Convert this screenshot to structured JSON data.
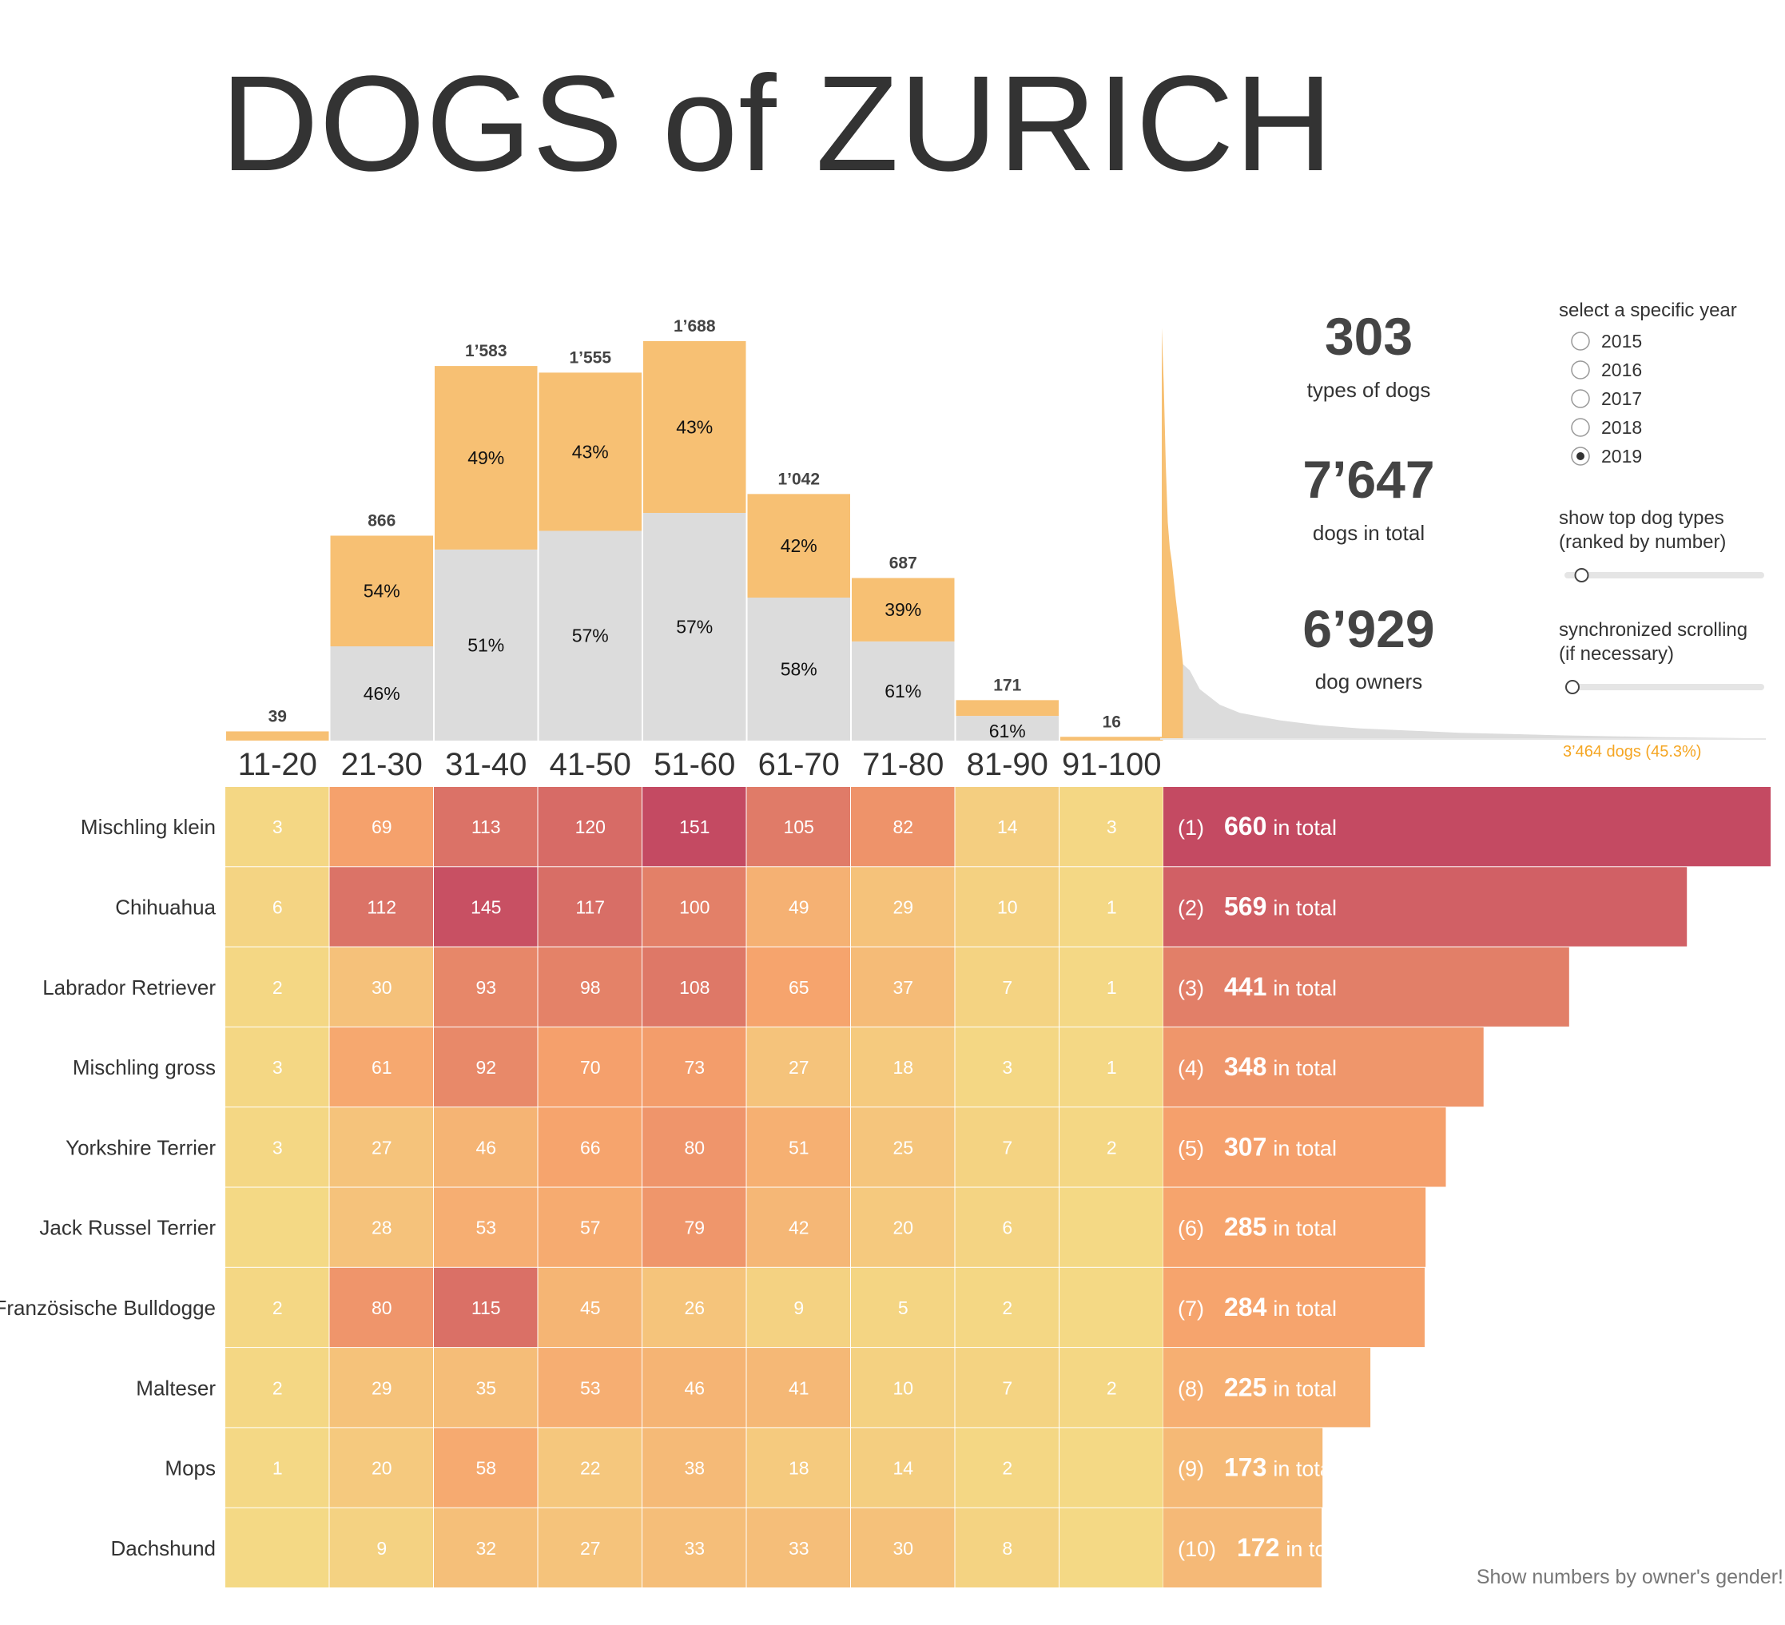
{
  "title": "DOGS of ZURICH",
  "stats": [
    {
      "value": "303",
      "label": "types of dogs"
    },
    {
      "value": "7’647",
      "label": "dogs in total"
    },
    {
      "value": "6’929",
      "label": "dog owners"
    }
  ],
  "controls": {
    "year_heading": "select a specific year",
    "years": [
      "2015",
      "2016",
      "2017",
      "2018",
      "2019"
    ],
    "selected_year": "2019",
    "top_types_heading_1": "show top dog types",
    "top_types_heading_2": "(ranked by number)",
    "top_types_slider_value": 0.05,
    "sync_heading_1": "synchronized scrolling",
    "sync_heading_2": "(if necessary)",
    "sync_slider_value": 0.0
  },
  "distribution_note": "3’464 dogs  (45.3%)",
  "footer": "Show numbers by owner's gender!",
  "colors": {
    "orange": "#f7c073",
    "gray": "#dcdcdc",
    "heat_low": "#f4d985",
    "heat_mid": "#f6a26c",
    "heat_high": "#c44a62"
  },
  "chart_data": [
    {
      "type": "bar",
      "categories": [
        "11-20",
        "21-30",
        "31-40",
        "41-50",
        "51-60",
        "61-70",
        "71-80",
        "81-90",
        "91-100"
      ],
      "totals": [
        39,
        866,
        1583,
        1555,
        1688,
        1042,
        687,
        171,
        16
      ],
      "total_labels": [
        "39",
        "866",
        "1’583",
        "1’555",
        "1’688",
        "1’042",
        "687",
        "171",
        "16"
      ],
      "series": [
        {
          "values": [
            null,
            46,
            51,
            57,
            57,
            58,
            61,
            61,
            null
          ],
          "color": "#dcdcdc"
        },
        {
          "values": [
            null,
            54,
            49,
            43,
            43,
            42,
            39,
            null,
            null
          ],
          "color": "#f7c073"
        }
      ],
      "bottom_pct_labels": [
        "",
        "46%",
        "51%",
        "57%",
        "57%",
        "58%",
        "61%",
        "61%",
        ""
      ],
      "top_pct_labels": [
        "",
        "54%",
        "49%",
        "43%",
        "43%",
        "42%",
        "39%",
        "",
        ""
      ],
      "ylim": [
        0,
        1688
      ]
    },
    {
      "type": "heatmap",
      "x": [
        "11-20",
        "21-30",
        "31-40",
        "41-50",
        "51-60",
        "61-70",
        "71-80",
        "81-90",
        "91-100"
      ],
      "y": [
        "Mischling klein",
        "Chihuahua",
        "Labrador Retriever",
        "Mischling gross",
        "Yorkshire Terrier",
        "Jack Russel Terrier",
        "Französische Bulldogge",
        "Malteser",
        "Mops",
        "Dachshund"
      ],
      "values": [
        [
          3,
          69,
          113,
          120,
          151,
          105,
          82,
          14,
          3
        ],
        [
          6,
          112,
          145,
          117,
          100,
          49,
          29,
          10,
          1
        ],
        [
          2,
          30,
          93,
          98,
          108,
          65,
          37,
          7,
          1
        ],
        [
          3,
          61,
          92,
          70,
          73,
          27,
          18,
          3,
          1
        ],
        [
          3,
          27,
          46,
          66,
          80,
          51,
          25,
          7,
          2
        ],
        [
          null,
          28,
          53,
          57,
          79,
          42,
          20,
          6,
          null
        ],
        [
          2,
          80,
          115,
          45,
          26,
          9,
          5,
          2,
          null
        ],
        [
          2,
          29,
          35,
          53,
          46,
          41,
          10,
          7,
          2
        ],
        [
          1,
          20,
          58,
          22,
          38,
          18,
          14,
          2,
          null
        ],
        [
          null,
          9,
          32,
          27,
          33,
          33,
          30,
          8,
          null
        ]
      ]
    },
    {
      "type": "bar",
      "orientation": "horizontal",
      "categories": [
        "Mischling klein",
        "Chihuahua",
        "Labrador Retriever",
        "Mischling gross",
        "Yorkshire Terrier",
        "Jack Russel Terrier",
        "Französische Bulldogge",
        "Malteser",
        "Mops",
        "Dachshund"
      ],
      "ranks": [
        "(1)",
        "(2)",
        "(3)",
        "(4)",
        "(5)",
        "(6)",
        "(7)",
        "(8)",
        "(9)",
        "(10)"
      ],
      "values": [
        660,
        569,
        441,
        348,
        307,
        285,
        284,
        225,
        173,
        172
      ],
      "suffix": "in total",
      "xlim": [
        0,
        660
      ]
    },
    {
      "type": "area",
      "x": [
        1,
        2,
        3,
        4,
        5,
        6,
        8,
        10,
        15,
        20,
        30,
        40,
        60,
        80,
        100,
        150,
        200,
        250,
        303
      ],
      "values": [
        660,
        569,
        441,
        348,
        307,
        285,
        225,
        172,
        110,
        80,
        55,
        42,
        30,
        22,
        17,
        10,
        6,
        3,
        1
      ],
      "highlight_first_n": 10,
      "highlight_color": "#f7c073",
      "rest_color": "#dcdcdc"
    }
  ]
}
